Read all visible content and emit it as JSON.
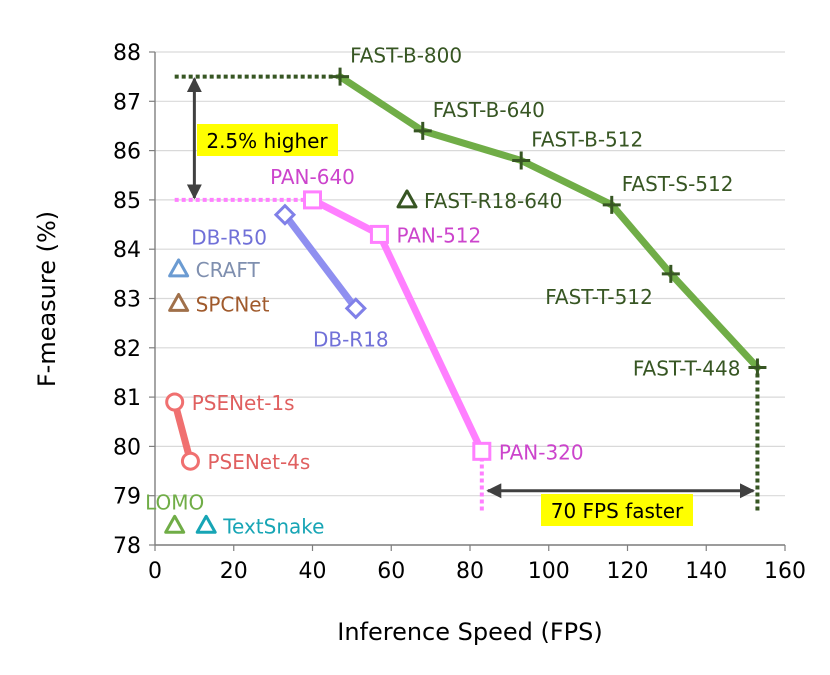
{
  "chart_data": {
    "type": "scatter",
    "xlabel": "Inference Speed (FPS)",
    "ylabel": "F-measure (%)",
    "xlim": [
      0,
      160
    ],
    "ylim": [
      78,
      88
    ],
    "x_ticks": [
      0,
      20,
      40,
      60,
      80,
      100,
      120,
      140,
      160
    ],
    "y_ticks": [
      78,
      79,
      80,
      81,
      82,
      83,
      84,
      85,
      86,
      87,
      88
    ],
    "grid": "horizontal",
    "series": [
      {
        "name": "FAST",
        "marker": "plus",
        "line_color": "#70ad47",
        "marker_color": "#375623",
        "label_color": "#375623",
        "points": [
          {
            "label": "FAST-B-800",
            "x": 47,
            "y": 87.5,
            "label_pos": "upper-right"
          },
          {
            "label": "FAST-B-640",
            "x": 68,
            "y": 86.4,
            "label_pos": "upper-right"
          },
          {
            "label": "FAST-B-512",
            "x": 93,
            "y": 85.8,
            "label_pos": "upper-right"
          },
          {
            "label": "FAST-S-512",
            "x": 116,
            "y": 84.9,
            "label_pos": "upper-right"
          },
          {
            "label": "FAST-T-512",
            "x": 131,
            "y": 83.5,
            "label_pos": "lower-left"
          },
          {
            "label": "FAST-T-448",
            "x": 153,
            "y": 81.6,
            "label_pos": "left"
          }
        ]
      },
      {
        "name": "PAN",
        "marker": "square",
        "line_color": "#ff7fff",
        "marker_color": "#ff7fff",
        "label_color": "#cc44cc",
        "points": [
          {
            "label": "PAN-640",
            "x": 40,
            "y": 85.0,
            "label_pos": "above"
          },
          {
            "label": "PAN-512",
            "x": 57,
            "y": 84.3,
            "label_pos": "right"
          },
          {
            "label": "PAN-320",
            "x": 83,
            "y": 79.9,
            "label_pos": "right"
          }
        ]
      },
      {
        "name": "DB",
        "marker": "diamond",
        "line_color": "#8f8ff0",
        "marker_color": "#8080e8",
        "label_color": "#7070d8",
        "points": [
          {
            "label": "DB-R50",
            "x": 33,
            "y": 84.7,
            "label_pos": "lower-left"
          },
          {
            "label": "DB-R18",
            "x": 51,
            "y": 82.8,
            "label_pos": "below"
          }
        ]
      },
      {
        "name": "PSENet",
        "marker": "circle",
        "line_color": "#f07070",
        "marker_color": "#f07070",
        "label_color": "#e06060",
        "points": [
          {
            "label": "PSENet-1s",
            "x": 5,
            "y": 80.9,
            "label_pos": "right"
          },
          {
            "label": "PSENet-4s",
            "x": 9,
            "y": 79.7,
            "label_pos": "right"
          }
        ]
      },
      {
        "name": "FAST-R18-640",
        "marker": "triangle",
        "marker_color": "#375623",
        "label_color": "#375623",
        "points": [
          {
            "label": "FAST-R18-640",
            "x": 64,
            "y": 85.0,
            "label_pos": "right"
          }
        ]
      },
      {
        "name": "CRAFT",
        "marker": "triangle",
        "marker_color": "#6b9bd2",
        "label_color": "#7f8faf",
        "points": [
          {
            "label": "CRAFT",
            "x": 6,
            "y": 83.6,
            "label_pos": "right"
          }
        ]
      },
      {
        "name": "SPCNet",
        "marker": "triangle",
        "marker_color": "#a0704a",
        "label_color": "#a05a2c",
        "points": [
          {
            "label": "SPCNet",
            "x": 6,
            "y": 82.9,
            "label_pos": "right"
          }
        ]
      },
      {
        "name": "LOMO",
        "marker": "triangle",
        "marker_color": "#70ad47",
        "label_color": "#70ad47",
        "points": [
          {
            "label": "LOMO",
            "x": 5,
            "y": 78.4,
            "label_pos": "above"
          }
        ]
      },
      {
        "name": "TextSnake",
        "marker": "triangle",
        "marker_color": "#17a5b5",
        "label_color": "#17a5b5",
        "points": [
          {
            "label": "TextSnake",
            "x": 13,
            "y": 78.4,
            "label_pos": "right"
          }
        ]
      }
    ],
    "annotations": [
      {
        "id": "higher",
        "text": "2.5% higher",
        "from_y": 85.0,
        "to_y": 87.5,
        "at_x": 10,
        "highlight": "#ffff00"
      },
      {
        "id": "faster",
        "text": "70 FPS faster",
        "from_x": 83,
        "to_x": 153,
        "at_y": 79.1,
        "highlight": "#ffff00"
      }
    ],
    "reference_lines": [
      {
        "type": "h",
        "y": 87.5,
        "x_from": 5,
        "x_to": 47,
        "color": "#375623"
      },
      {
        "type": "h",
        "y": 85.0,
        "x_from": 5,
        "x_to": 40,
        "color": "#ff7fff"
      },
      {
        "type": "v",
        "x": 83,
        "y_from": 78.7,
        "y_to": 79.9,
        "color": "#ff7fff"
      },
      {
        "type": "v",
        "x": 153,
        "y_from": 78.7,
        "y_to": 81.6,
        "color": "#375623"
      }
    ]
  }
}
